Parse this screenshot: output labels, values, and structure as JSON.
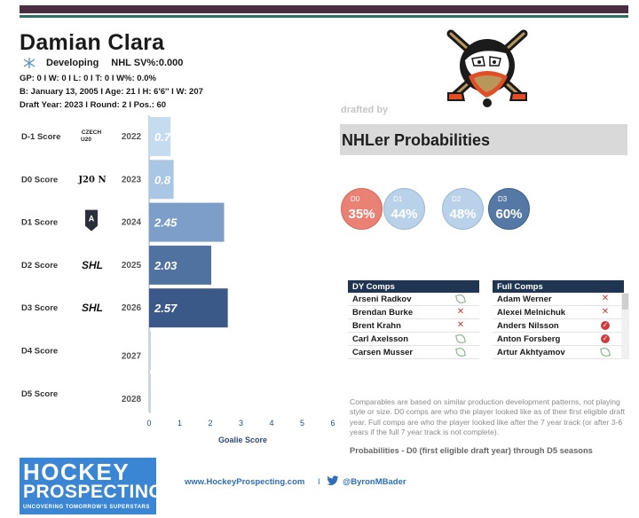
{
  "header": {
    "player_name": "Damian Clara",
    "status": "Developing",
    "save_pct": "NHL SV%:0.000",
    "stats_line": "GP: 0 I W: 0 I L: 0 I T: 0 I W%: 0.0%",
    "bio_line": "B: January 13, 2005 I Age: 21 I H: 6'6'' I W: 207",
    "draft_line": "Draft Year: 2023 I Round: 2 I Pos.: 60"
  },
  "drafted_by_label": "drafted by",
  "team_logo_icon": "ducks-logo-icon",
  "probabilities": {
    "title": "NHLer Probabilities",
    "items": [
      {
        "label": "D0",
        "value": "35%",
        "color": "#e98275"
      },
      {
        "label": "D1",
        "value": "44%",
        "color": "#b9d1e9"
      },
      {
        "label": "D2",
        "value": "48%",
        "color": "#b9d1e9"
      },
      {
        "label": "D3",
        "value": "60%",
        "color": "#5678a4"
      }
    ]
  },
  "chart_data": {
    "type": "bar",
    "orientation": "horizontal",
    "xlabel": "Goalie Score",
    "xlim": [
      0,
      6
    ],
    "xticks": [
      0,
      1,
      2,
      3,
      4,
      5,
      6
    ],
    "categories": [
      "D-1 Score",
      "D0 Score",
      "D1 Score",
      "D2 Score",
      "D3 Score",
      "D4 Score",
      "D5 Score"
    ],
    "leagues": [
      "CZECH U20",
      "J20 N",
      "league-logo-icon",
      "SHL",
      "SHL",
      "",
      ""
    ],
    "years": [
      "2022",
      "2023",
      "2024",
      "2025",
      "2026",
      "2027",
      "2028"
    ],
    "values": [
      0.7,
      0.8,
      2.45,
      2.03,
      2.57,
      null,
      null
    ],
    "labels": [
      "0.7",
      "0.8",
      "2.45",
      "2.03",
      "2.57",
      "",
      ""
    ],
    "colors": [
      "#c5dcf0",
      "#a9c6e4",
      "#7c9ec8",
      "#4f72a1",
      "#3a5989",
      "#3a5989",
      "#3a5989"
    ]
  },
  "dy_comps": {
    "title": "DY Comps",
    "rows": [
      {
        "name": "Arseni Radkov",
        "icon": "leaf-icon"
      },
      {
        "name": "Brendan Burke",
        "icon": "x-icon"
      },
      {
        "name": "Brent Krahn",
        "icon": "x-icon"
      },
      {
        "name": "Carl Axelsson",
        "icon": "leaf-icon"
      },
      {
        "name": "Carsen Musser",
        "icon": "leaf-icon"
      }
    ]
  },
  "full_comps": {
    "title": "Full Comps",
    "rows": [
      {
        "name": "Adam Werner",
        "icon": "x-icon"
      },
      {
        "name": "Alexei Melnichuk",
        "icon": "x-icon"
      },
      {
        "name": "Anders Nilsson",
        "icon": "check-icon"
      },
      {
        "name": "Anton Forsberg",
        "icon": "check-icon"
      },
      {
        "name": "Artur Akhtyamov",
        "icon": "leaf-icon"
      }
    ]
  },
  "comparables_note": "Comparables are based on similar production development patterns, not playing style or size. D0 comps are who the player looked like as of their first eligible draft year. Full comps are who the player looked like after the 7 year track (or after 3-6 years if the full 7 year track is not complete).",
  "probabilities_note": "Probabilities - D0 (first eligible draft year) through D5 seasons",
  "branding": {
    "logo_line1": "HOCKEY",
    "logo_line2": "PROSPECTING",
    "logo_line3": "UNCOVERING TOMORROW'S SUPERSTARS",
    "website": "www.HockeyProspecting.com",
    "separator": "I",
    "twitter_icon": "twitter-bird-icon",
    "handle": "@ByronMBader"
  }
}
